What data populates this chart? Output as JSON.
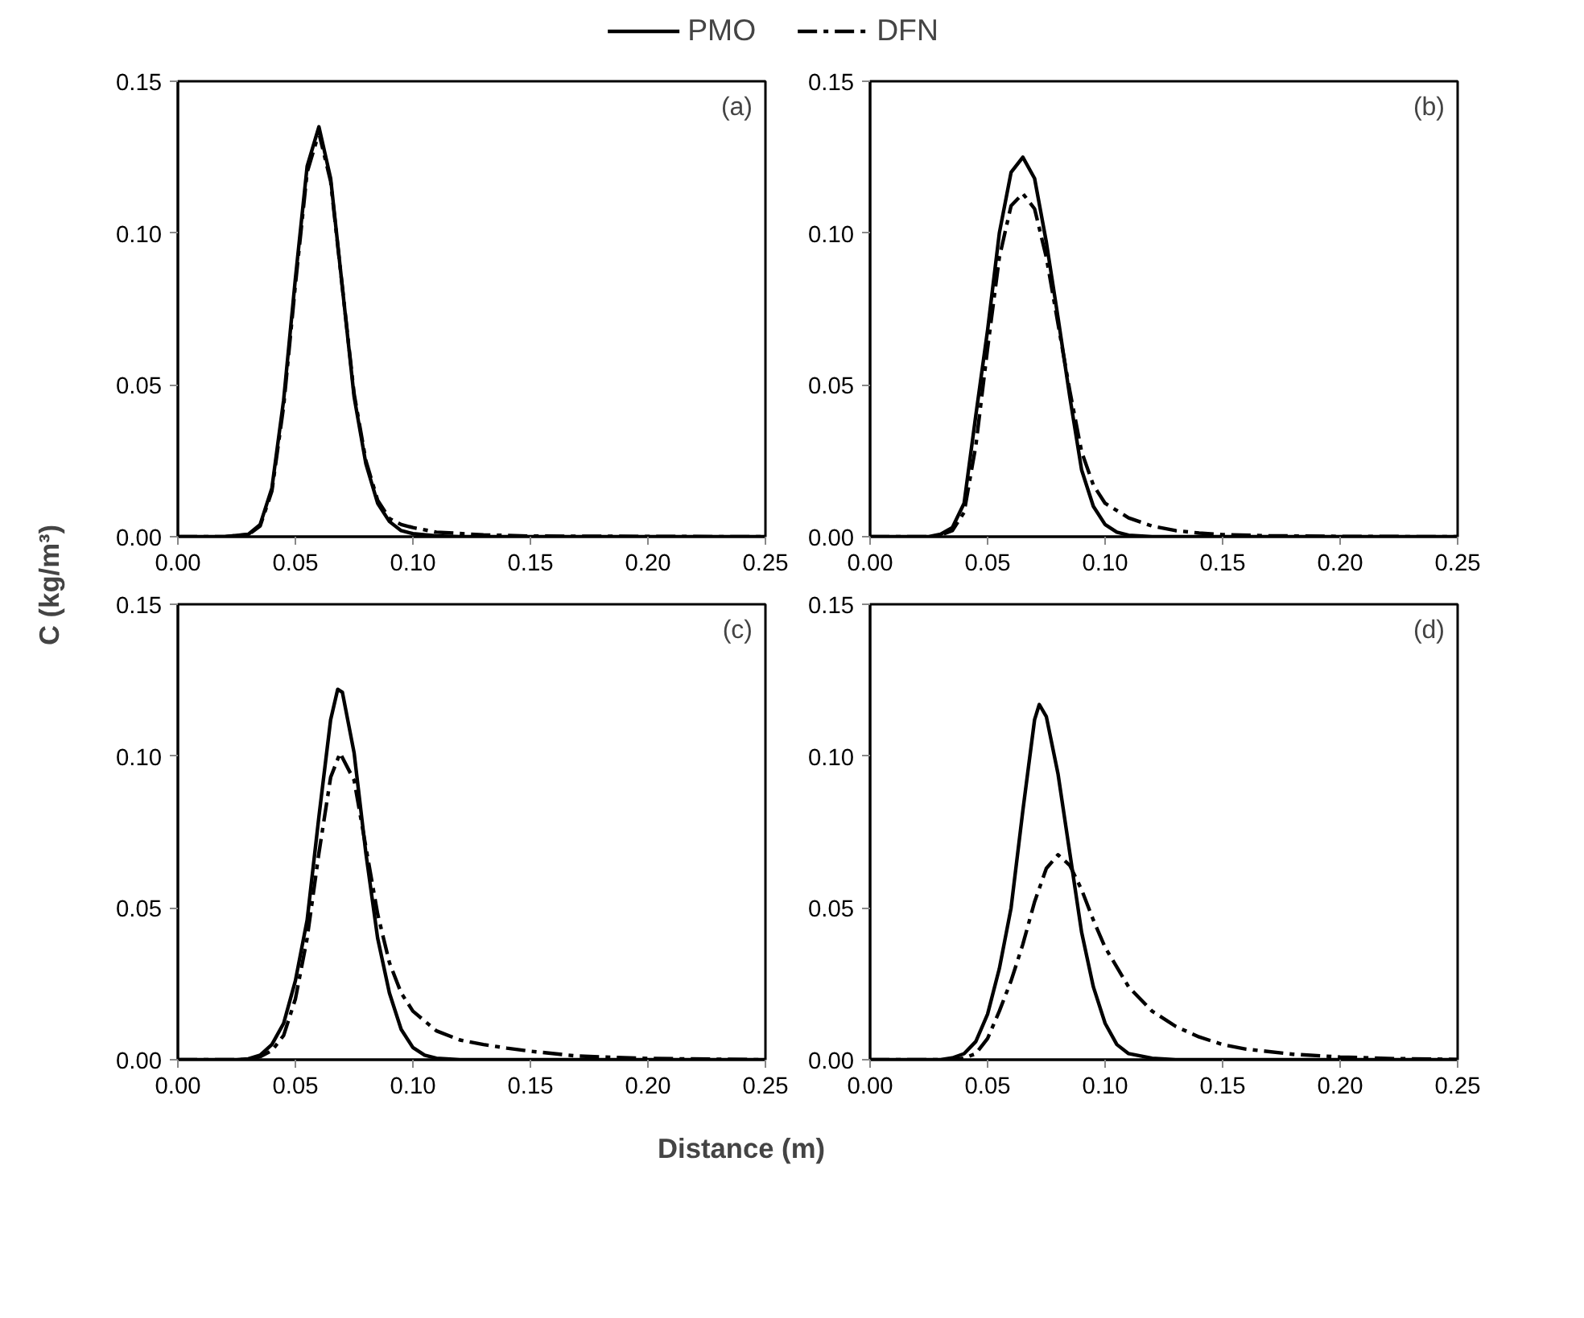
{
  "chart_data": [
    {
      "type": "line",
      "annotations": [
        "(a)"
      ],
      "xlabel": "Distance (m)",
      "ylabel": "C (kg/m³)",
      "legend": "top",
      "xlim": [
        0,
        0.25
      ],
      "ylim": [
        0,
        0.15
      ],
      "xticks": [
        {
          "value": 0,
          "label": "0.00"
        },
        {
          "value": 0.05,
          "label": "0.05"
        },
        {
          "value": 0.1,
          "label": "0.10"
        },
        {
          "value": 0.15,
          "label": "0.15"
        },
        {
          "value": 0.2,
          "label": "0.20"
        },
        {
          "value": 0.25,
          "label": "0.25"
        }
      ],
      "yticks": [
        {
          "value": 0,
          "label": "0.00"
        },
        {
          "value": 0.05,
          "label": "0.05"
        },
        {
          "value": 0.1,
          "label": "0.10"
        },
        {
          "value": 0.15,
          "label": "0.15"
        }
      ],
      "grid": false,
      "series": [
        {
          "name": "PMO",
          "color": "#000000",
          "line_style": "solid",
          "x": [
            0,
            0.02,
            0.03,
            0.035,
            0.04,
            0.045,
            0.05,
            0.055,
            0.06,
            0.065,
            0.07,
            0.075,
            0.08,
            0.085,
            0.09,
            0.095,
            0.1,
            0.11,
            0.12,
            0.25
          ],
          "values": [
            0,
            0,
            0.0008,
            0.004,
            0.016,
            0.045,
            0.085,
            0.122,
            0.135,
            0.118,
            0.082,
            0.046,
            0.024,
            0.011,
            0.005,
            0.002,
            0.001,
            0.0003,
            0,
            0
          ]
        },
        {
          "name": "DFN",
          "color": "#000000",
          "line_style": "dashdot",
          "x": [
            0,
            0.02,
            0.03,
            0.035,
            0.04,
            0.045,
            0.05,
            0.055,
            0.06,
            0.065,
            0.07,
            0.075,
            0.08,
            0.085,
            0.09,
            0.095,
            0.1,
            0.11,
            0.13,
            0.15,
            0.25
          ],
          "values": [
            0,
            0,
            0.0007,
            0.0035,
            0.015,
            0.043,
            0.083,
            0.12,
            0.133,
            0.117,
            0.082,
            0.047,
            0.025,
            0.012,
            0.006,
            0.004,
            0.003,
            0.0015,
            0.0006,
            0.0002,
            0
          ]
        }
      ]
    },
    {
      "type": "line",
      "annotations": [
        "(b)"
      ],
      "xlim": [
        0,
        0.25
      ],
      "ylim": [
        0,
        0.15
      ],
      "xticks": [
        {
          "value": 0,
          "label": "0.00"
        },
        {
          "value": 0.05,
          "label": "0.05"
        },
        {
          "value": 0.1,
          "label": "0.10"
        },
        {
          "value": 0.15,
          "label": "0.15"
        },
        {
          "value": 0.2,
          "label": "0.20"
        },
        {
          "value": 0.25,
          "label": "0.25"
        }
      ],
      "yticks": [
        {
          "value": 0,
          "label": "0.00"
        },
        {
          "value": 0.05,
          "label": "0.05"
        },
        {
          "value": 0.1,
          "label": "0.10"
        },
        {
          "value": 0.15,
          "label": "0.15"
        }
      ],
      "grid": false,
      "series": [
        {
          "color": "#000000",
          "line_style": "solid",
          "x": [
            0,
            0.025,
            0.03,
            0.035,
            0.04,
            0.045,
            0.05,
            0.055,
            0.06,
            0.065,
            0.07,
            0.075,
            0.08,
            0.085,
            0.09,
            0.095,
            0.1,
            0.105,
            0.11,
            0.12,
            0.25
          ],
          "values": [
            0,
            0,
            0.0008,
            0.003,
            0.011,
            0.04,
            0.068,
            0.1,
            0.12,
            0.125,
            0.118,
            0.097,
            0.072,
            0.046,
            0.022,
            0.01,
            0.004,
            0.0015,
            0.0005,
            0,
            0
          ]
        },
        {
          "color": "#000000",
          "line_style": "dashdot",
          "x": [
            0,
            0.025,
            0.03,
            0.035,
            0.04,
            0.045,
            0.05,
            0.055,
            0.06,
            0.065,
            0.07,
            0.075,
            0.08,
            0.085,
            0.09,
            0.095,
            0.1,
            0.11,
            0.12,
            0.13,
            0.14,
            0.15,
            0.17,
            0.2,
            0.25
          ],
          "values": [
            0,
            0,
            0.0005,
            0.002,
            0.008,
            0.03,
            0.062,
            0.092,
            0.109,
            0.113,
            0.108,
            0.092,
            0.07,
            0.048,
            0.028,
            0.017,
            0.011,
            0.0062,
            0.0035,
            0.002,
            0.0012,
            0.0007,
            0.0003,
            0.0001,
            0
          ]
        }
      ]
    },
    {
      "type": "line",
      "annotations": [
        "(c)"
      ],
      "xlim": [
        0,
        0.25
      ],
      "ylim": [
        0,
        0.15
      ],
      "xticks": [
        {
          "value": 0,
          "label": "0.00"
        },
        {
          "value": 0.05,
          "label": "0.05"
        },
        {
          "value": 0.1,
          "label": "0.10"
        },
        {
          "value": 0.15,
          "label": "0.15"
        },
        {
          "value": 0.2,
          "label": "0.20"
        },
        {
          "value": 0.25,
          "label": "0.25"
        }
      ],
      "yticks": [
        {
          "value": 0,
          "label": "0.00"
        },
        {
          "value": 0.05,
          "label": "0.05"
        },
        {
          "value": 0.1,
          "label": "0.10"
        },
        {
          "value": 0.15,
          "label": "0.15"
        }
      ],
      "grid": false,
      "series": [
        {
          "color": "#000000",
          "line_style": "solid",
          "x": [
            0,
            0.025,
            0.03,
            0.035,
            0.04,
            0.045,
            0.05,
            0.055,
            0.06,
            0.065,
            0.068,
            0.07,
            0.075,
            0.08,
            0.085,
            0.09,
            0.095,
            0.1,
            0.105,
            0.11,
            0.12,
            0.25
          ],
          "values": [
            0,
            0,
            0.0003,
            0.0015,
            0.005,
            0.012,
            0.026,
            0.046,
            0.08,
            0.112,
            0.122,
            0.121,
            0.101,
            0.068,
            0.04,
            0.022,
            0.01,
            0.004,
            0.0015,
            0.0005,
            0,
            0
          ]
        },
        {
          "color": "#000000",
          "line_style": "dashdot",
          "x": [
            0,
            0.03,
            0.035,
            0.04,
            0.045,
            0.05,
            0.055,
            0.06,
            0.065,
            0.069,
            0.075,
            0.08,
            0.085,
            0.09,
            0.095,
            0.1,
            0.11,
            0.12,
            0.13,
            0.14,
            0.15,
            0.17,
            0.2,
            0.25
          ],
          "values": [
            0,
            0,
            0.001,
            0.003,
            0.008,
            0.02,
            0.04,
            0.068,
            0.093,
            0.101,
            0.092,
            0.07,
            0.048,
            0.032,
            0.022,
            0.016,
            0.0095,
            0.0065,
            0.005,
            0.0038,
            0.0028,
            0.0012,
            0.0004,
            0
          ]
        }
      ]
    },
    {
      "type": "line",
      "annotations": [
        "(d)"
      ],
      "xlim": [
        0,
        0.25
      ],
      "ylim": [
        0,
        0.15
      ],
      "xticks": [
        {
          "value": 0,
          "label": "0.00"
        },
        {
          "value": 0.05,
          "label": "0.05"
        },
        {
          "value": 0.1,
          "label": "0.10"
        },
        {
          "value": 0.15,
          "label": "0.15"
        },
        {
          "value": 0.2,
          "label": "0.20"
        },
        {
          "value": 0.25,
          "label": "0.25"
        }
      ],
      "yticks": [
        {
          "value": 0,
          "label": "0.00"
        },
        {
          "value": 0.05,
          "label": "0.05"
        },
        {
          "value": 0.1,
          "label": "0.10"
        },
        {
          "value": 0.15,
          "label": "0.15"
        }
      ],
      "grid": false,
      "series": [
        {
          "color": "#000000",
          "line_style": "solid",
          "x": [
            0,
            0.03,
            0.035,
            0.04,
            0.045,
            0.05,
            0.055,
            0.06,
            0.065,
            0.07,
            0.072,
            0.075,
            0.08,
            0.085,
            0.09,
            0.095,
            0.1,
            0.105,
            0.11,
            0.12,
            0.13,
            0.25
          ],
          "values": [
            0,
            0,
            0.0006,
            0.002,
            0.006,
            0.015,
            0.03,
            0.05,
            0.082,
            0.112,
            0.117,
            0.113,
            0.094,
            0.068,
            0.042,
            0.024,
            0.012,
            0.005,
            0.002,
            0.0005,
            0,
            0
          ]
        },
        {
          "color": "#000000",
          "line_style": "dashdot",
          "x": [
            0,
            0.035,
            0.04,
            0.045,
            0.05,
            0.055,
            0.06,
            0.065,
            0.07,
            0.075,
            0.08,
            0.085,
            0.09,
            0.095,
            0.1,
            0.11,
            0.12,
            0.13,
            0.14,
            0.15,
            0.16,
            0.18,
            0.2,
            0.22,
            0.25
          ],
          "values": [
            0,
            0,
            0.0005,
            0.002,
            0.007,
            0.016,
            0.026,
            0.038,
            0.052,
            0.063,
            0.0675,
            0.064,
            0.056,
            0.046,
            0.037,
            0.024,
            0.016,
            0.011,
            0.0075,
            0.005,
            0.0035,
            0.0018,
            0.0009,
            0.0004,
            0.0001
          ]
        }
      ]
    }
  ]
}
